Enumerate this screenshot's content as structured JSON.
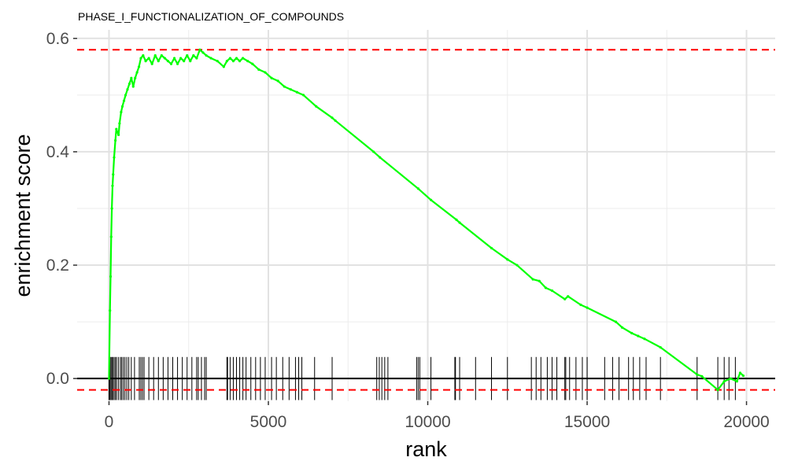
{
  "chart_data": {
    "type": "line",
    "title": "PHASE_I_FUNCTIONALIZATION_OF_COMPOUNDS",
    "xlabel": "rank",
    "ylabel": "enrichment score",
    "xlim": [
      -1000,
      20900
    ],
    "ylim": [
      -0.04,
      0.615
    ],
    "x_ticks": [
      0,
      5000,
      10000,
      15000,
      20000
    ],
    "x_tick_labels": [
      "0",
      "5000",
      "10000",
      "15000",
      "20000"
    ],
    "y_ticks": [
      0.0,
      0.2,
      0.4,
      0.6
    ],
    "y_tick_labels": [
      "0.0",
      "0.2",
      "0.4",
      "0.6"
    ],
    "grid": true,
    "line_color": "#00ff00",
    "threshold_color": "#ff0000",
    "thresholds": [
      0.58,
      -0.02
    ],
    "series": [
      {
        "x": [
          0,
          30,
          50,
          70,
          90,
          110,
          130,
          160,
          200,
          230,
          260,
          300,
          330,
          380,
          420,
          470,
          520,
          580,
          640,
          700,
          760,
          820,
          880,
          940,
          1000,
          1070,
          1150,
          1250,
          1350,
          1450,
          1550,
          1650,
          1750,
          1850,
          1950,
          2050,
          2150,
          2250,
          2350,
          2450,
          2550,
          2650,
          2750,
          2850,
          2950,
          3050,
          3200,
          3400,
          3600,
          3700,
          3800,
          3900,
          4000,
          4100,
          4200,
          4350,
          4500,
          4700,
          4900,
          5100,
          5300,
          5500,
          5700,
          5900,
          6100,
          6500,
          7000,
          7100,
          8300,
          8500,
          9700,
          10100,
          10900,
          11000,
          12000,
          12500,
          12800,
          13300,
          13500,
          13700,
          13900,
          14300,
          14400,
          14800,
          15000,
          15900,
          16100,
          16400,
          16600,
          16800,
          17300,
          18450,
          18600,
          19100,
          19300,
          19500,
          19700,
          19800,
          19900
        ],
        "values": [
          0.0,
          0.12,
          0.18,
          0.25,
          0.3,
          0.34,
          0.36,
          0.39,
          0.42,
          0.44,
          0.435,
          0.43,
          0.45,
          0.47,
          0.48,
          0.49,
          0.5,
          0.51,
          0.52,
          0.53,
          0.515,
          0.53,
          0.54,
          0.55,
          0.565,
          0.57,
          0.56,
          0.565,
          0.555,
          0.57,
          0.56,
          0.57,
          0.565,
          0.56,
          0.555,
          0.565,
          0.555,
          0.565,
          0.56,
          0.57,
          0.56,
          0.57,
          0.565,
          0.58,
          0.575,
          0.57,
          0.565,
          0.56,
          0.55,
          0.56,
          0.565,
          0.56,
          0.565,
          0.56,
          0.565,
          0.56,
          0.555,
          0.545,
          0.54,
          0.53,
          0.525,
          0.515,
          0.51,
          0.505,
          0.5,
          0.48,
          0.46,
          0.455,
          0.4,
          0.39,
          0.335,
          0.315,
          0.28,
          0.275,
          0.23,
          0.21,
          0.2,
          0.175,
          0.172,
          0.16,
          0.155,
          0.14,
          0.145,
          0.13,
          0.125,
          0.1,
          0.09,
          0.08,
          0.075,
          0.07,
          0.055,
          0.007,
          0.004,
          -0.02,
          -0.005,
          0.0,
          -0.005,
          0.01,
          0.005
        ]
      }
    ],
    "hits": [
      0,
      30,
      60,
      90,
      120,
      160,
      200,
      240,
      300,
      360,
      400,
      450,
      500,
      560,
      620,
      700,
      800,
      950,
      1000,
      1050,
      1100,
      1250,
      1400,
      1550,
      1700,
      1850,
      2000,
      2150,
      2300,
      2450,
      2600,
      2750,
      2800,
      2900,
      3000,
      3050,
      3700,
      3720,
      3800,
      3900,
      4000,
      4100,
      4200,
      4300,
      4450,
      4600,
      4750,
      4900,
      5100,
      5250,
      5450,
      5650,
      5850,
      5950,
      6050,
      6450,
      7000,
      8400,
      8480,
      8560,
      8650,
      8750,
      9650,
      9700,
      9750,
      10100,
      10850,
      10870,
      11000,
      11500,
      12000,
      12500,
      13250,
      13400,
      13550,
      13750,
      13900,
      14050,
      14300,
      14330,
      14450,
      14650,
      14850,
      15000,
      15550,
      15800,
      16000,
      16300,
      16450,
      16650,
      16850,
      17300,
      18450,
      19100,
      19300,
      19450,
      19650
    ]
  }
}
